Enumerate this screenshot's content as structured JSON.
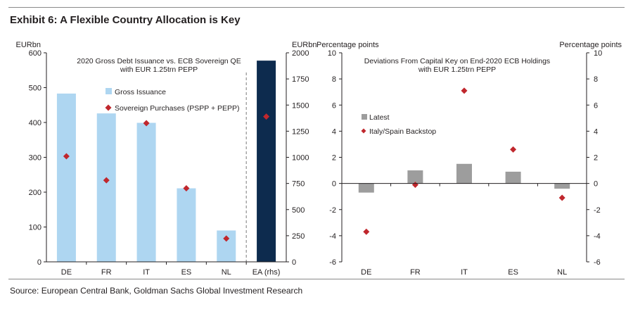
{
  "title": "Exhibit 6: A Flexible Country Allocation is Key",
  "source": "Source: European Central Bank, Goldman Sachs Global Investment Research",
  "colors": {
    "light_bar": "#aed6f1",
    "dark_bar": "#0d2b4e",
    "marker": "#c0272d",
    "grey_bar": "#9d9d9d",
    "axis": "#231f20"
  },
  "chart_data": [
    {
      "type": "bar",
      "title_lines": [
        "2020 Gross Debt Issuance vs. ECB Sovereign QE",
        "with EUR 1.25trn PEPP"
      ],
      "left_unit": "EURbn",
      "right_unit": "EURbn",
      "categories": [
        "DE",
        "FR",
        "IT",
        "ES",
        "NL",
        "EA (rhs)"
      ],
      "ylim": [
        0,
        600
      ],
      "y_ticks": [
        0,
        100,
        200,
        300,
        400,
        500,
        600
      ],
      "y2lim": [
        0,
        2000
      ],
      "y2_ticks": [
        0,
        250,
        500,
        750,
        1000,
        1250,
        1500,
        1750,
        2000
      ],
      "y2_tick_labels": [
        "0",
        "250",
        "500",
        "750",
        "1000",
        "1250",
        "1500",
        "1750",
        "2000"
      ],
      "series": [
        {
          "name": "Gross Issuance",
          "kind": "bar",
          "axis": "left",
          "values": [
            483,
            426,
            399,
            211,
            90,
            null
          ]
        },
        {
          "name": "Sovereign Purchases (PSPP + PEPP)",
          "kind": "marker",
          "axis": "left",
          "values": [
            303,
            234,
            398,
            211,
            67,
            null
          ]
        },
        {
          "name": "EA Gross Issuance (rhs)",
          "kind": "bar",
          "axis": "right",
          "values": [
            null,
            null,
            null,
            null,
            null,
            1925
          ]
        },
        {
          "name": "EA Sovereign Purchases (rhs)",
          "kind": "marker",
          "axis": "right",
          "values": [
            null,
            null,
            null,
            null,
            null,
            1390
          ]
        }
      ],
      "legend": [
        {
          "label": "Gross Issuance",
          "kind": "bar"
        },
        {
          "label": "Sovereign Purchases (PSPP + PEPP)",
          "kind": "marker"
        }
      ],
      "legend_position": "upper-left"
    },
    {
      "type": "bar",
      "title_lines": [
        "Deviations From Capital Key on End-2020 ECB Holdings",
        "with EUR 1.25trn PEPP"
      ],
      "left_unit": "Percentage points",
      "right_unit": "Percentage points",
      "categories": [
        "DE",
        "FR",
        "IT",
        "ES",
        "NL"
      ],
      "ylim": [
        -6,
        10
      ],
      "y_ticks": [
        -6,
        -4,
        -2,
        0,
        2,
        4,
        6,
        8,
        10
      ],
      "series": [
        {
          "name": "Latest",
          "kind": "bar",
          "values": [
            -0.7,
            1.0,
            1.5,
            0.9,
            -0.4
          ]
        },
        {
          "name": "Italy/Spain Backstop",
          "kind": "marker",
          "values": [
            -3.7,
            -0.1,
            7.1,
            2.6,
            -1.1
          ]
        }
      ],
      "legend": [
        {
          "label": "Latest",
          "kind": "bar"
        },
        {
          "label": "Italy/Spain Backstop",
          "kind": "marker"
        }
      ],
      "legend_position": "center-left"
    }
  ]
}
